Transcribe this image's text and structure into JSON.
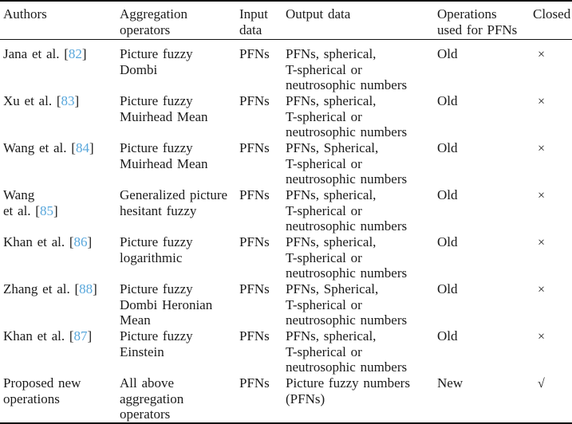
{
  "page": {
    "background": "#ffffff",
    "text_color": "#1b1b1b",
    "citation_link_color": "#57a6db",
    "rule_color": "#111111"
  },
  "table": {
    "citation_brackets": [
      "[",
      "]"
    ],
    "columns": [
      {
        "key": "authors",
        "label": "Authors"
      },
      {
        "key": "aggregation",
        "label": "Aggregation\noperators"
      },
      {
        "key": "input",
        "label": "Input\ndata"
      },
      {
        "key": "output",
        "label": "Output data"
      },
      {
        "key": "operations",
        "label": "Operations\nused for PFNs"
      },
      {
        "key": "closed",
        "label": "Closed"
      }
    ],
    "rows": [
      {
        "author": {
          "pre": "Jana et al. ",
          "cite": "82"
        },
        "aggregation": "Picture fuzzy\nDombi",
        "input": "PFNs",
        "output": "PFNs, spherical,\nT-spherical or\nneutrosophic numbers",
        "operations": "Old",
        "closed": "×",
        "closed_icon": "cross-icon"
      },
      {
        "author": {
          "pre": "Xu et al. ",
          "cite": "83"
        },
        "aggregation": "Picture fuzzy\nMuirhead Mean",
        "input": "PFNs",
        "output": "PFNs, spherical,\nT-spherical or\nneutrosophic numbers",
        "operations": "Old",
        "closed": "×",
        "closed_icon": "cross-icon"
      },
      {
        "author": {
          "pre": "Wang et al. ",
          "cite": "84"
        },
        "aggregation": "Picture fuzzy\nMuirhead Mean",
        "input": "PFNs",
        "output": "PFNs, Spherical,\nT-spherical or\nneutrosophic numbers",
        "operations": "Old",
        "closed": "×",
        "closed_icon": "cross-icon"
      },
      {
        "author": {
          "pre": "Wang\net al. ",
          "cite": "85"
        },
        "aggregation": "Generalized picture\nhesitant fuzzy",
        "input": "PFNs",
        "output": "PFNs, spherical,\nT-spherical or\nneutrosophic numbers",
        "operations": "Old",
        "closed": "×",
        "closed_icon": "cross-icon"
      },
      {
        "author": {
          "pre": "Khan et al. ",
          "cite": "86"
        },
        "aggregation": "Picture fuzzy\nlogarithmic",
        "input": "PFNs",
        "output": "PFNs, spherical,\nT-spherical or\nneutrosophic numbers",
        "operations": "Old",
        "closed": "×",
        "closed_icon": "cross-icon"
      },
      {
        "author": {
          "pre": "Zhang et al. ",
          "cite": "88"
        },
        "aggregation": "Picture fuzzy\nDombi Heronian\nMean",
        "input": "PFNs",
        "output": "PFNs, Spherical,\nT-spherical or\nneutrosophic numbers",
        "operations": "Old",
        "closed": "×",
        "closed_icon": "cross-icon"
      },
      {
        "author": {
          "pre": "Khan et al. ",
          "cite": "87"
        },
        "aggregation": "Picture fuzzy\nEinstein",
        "input": "PFNs",
        "output": "PFNs, spherical,\nT-spherical or\nneutrosophic numbers",
        "operations": "Old",
        "closed": "×",
        "closed_icon": "cross-icon"
      },
      {
        "author": {
          "pre": "Proposed new\noperations",
          "cite": null
        },
        "aggregation": "All above\naggregation\noperators",
        "input": "PFNs",
        "output": "Picture fuzzy numbers\n(PFNs)",
        "operations": "New",
        "closed": "√",
        "closed_icon": "check-icon"
      }
    ]
  }
}
